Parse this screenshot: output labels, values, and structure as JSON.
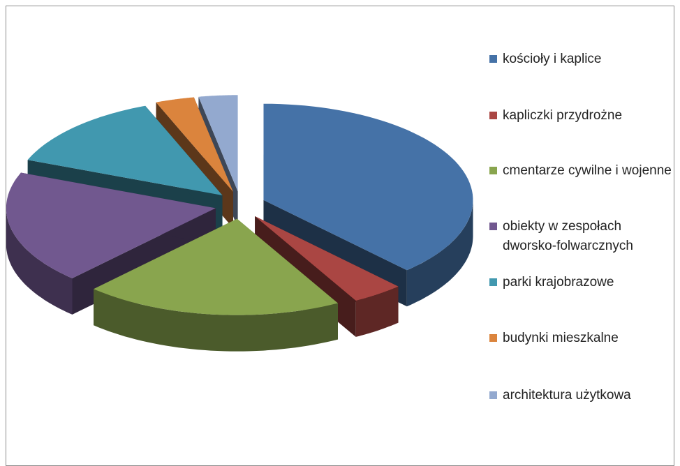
{
  "chart_data": {
    "type": "pie",
    "style": "3d-exploded",
    "legend_position": "right",
    "slices": [
      {
        "label": "kościoły i kaplice",
        "value": 38,
        "color": "#4572A7"
      },
      {
        "label": "kapliczki przydrożne",
        "value": 4,
        "color": "#AA4643"
      },
      {
        "label": "cmentarze cywilne i wojenne",
        "value": 20,
        "color": "#89A54E"
      },
      {
        "label": "obiekty w zespołach dworsko-folwarcznych",
        "value": 19,
        "color": "#71588F"
      },
      {
        "label": "parki krajobrazowe",
        "value": 13,
        "color": "#4198AF"
      },
      {
        "label": "budynki mieszkalne",
        "value": 3,
        "color": "#DB843D"
      },
      {
        "label": "architektura użytkowa",
        "value": 3,
        "color": "#93A9CF"
      }
    ]
  }
}
